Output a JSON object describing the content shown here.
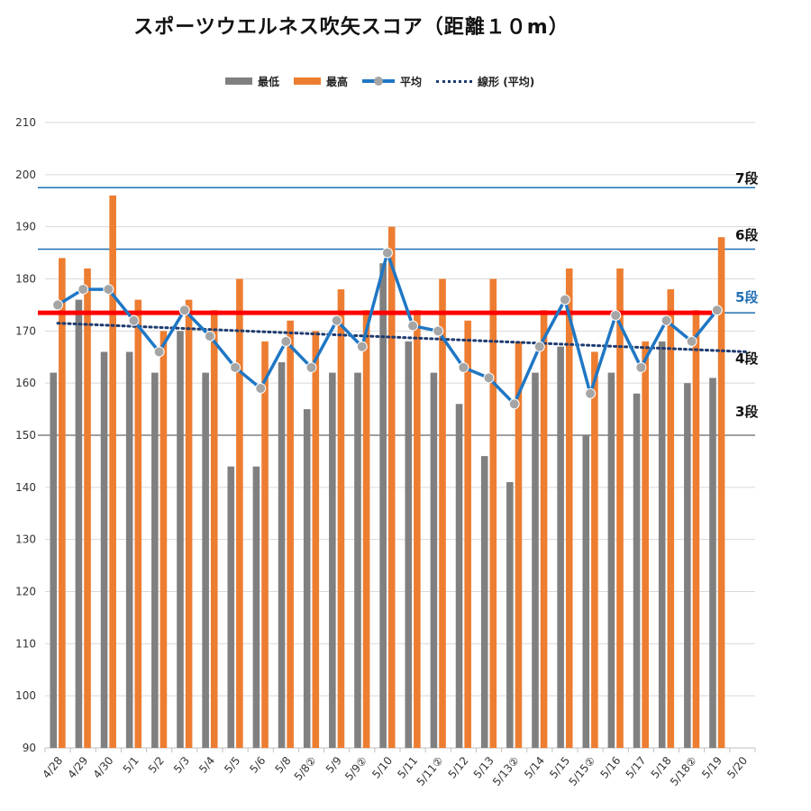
{
  "chart_data": {
    "type": "bar",
    "title": "スポーツウエルネス吹矢スコア（距離１０m）",
    "categories": [
      "4/28",
      "4/29",
      "4/30",
      "5/1",
      "5/2",
      "5/3",
      "5/4",
      "5/5",
      "5/6",
      "5/8",
      "5/8②",
      "5/9",
      "5/9②",
      "5/10",
      "5/11",
      "5/11②",
      "5/12",
      "5/13",
      "5/13②",
      "5/14",
      "5/15",
      "5/15②",
      "5/16",
      "5/17",
      "5/18",
      "5/18②",
      "5/19",
      "5/20"
    ],
    "series": [
      {
        "name": "最低",
        "kind": "bar",
        "color": "#808080",
        "values": [
          162,
          176,
          166,
          166,
          162,
          170,
          162,
          144,
          144,
          164,
          155,
          162,
          162,
          183,
          168,
          162,
          156,
          146,
          141,
          162,
          167,
          150,
          162,
          158,
          168,
          160,
          161,
          null
        ]
      },
      {
        "name": "最高",
        "kind": "bar",
        "color": "#ed7d31",
        "values": [
          184,
          182,
          196,
          176,
          170,
          176,
          174,
          180,
          168,
          172,
          170,
          178,
          174,
          190,
          174,
          180,
          172,
          180,
          168,
          174,
          182,
          166,
          182,
          168,
          178,
          174,
          188,
          null
        ]
      },
      {
        "name": "平均",
        "kind": "line",
        "color": "#1f77c4",
        "marker_color": "#a5a5a5",
        "values": [
          175,
          178,
          178,
          172,
          166,
          174,
          169,
          163,
          159,
          168,
          163,
          172,
          167,
          185,
          171,
          170,
          163,
          161,
          156,
          167,
          176,
          158,
          173,
          163,
          172,
          168,
          174,
          null
        ]
      },
      {
        "name": "線形 (平均)",
        "kind": "trendline",
        "color": "#1f3b70",
        "start": 171.5,
        "end": 166.0
      }
    ],
    "ylim": [
      90,
      210
    ],
    "yticks": [
      90,
      100,
      110,
      120,
      130,
      140,
      150,
      160,
      170,
      180,
      190,
      200,
      210
    ],
    "grid": true,
    "legend_position": "top",
    "reference_lines": [
      {
        "label": "7段",
        "value": 197.5,
        "color": "#1f6fb5",
        "label_color": "#111111",
        "width": 1.5
      },
      {
        "label": "6段",
        "value": 185.7,
        "color": "#1f6fb5",
        "label_color": "#111111",
        "width": 1.5
      },
      {
        "label": "5段",
        "value": 173.5,
        "color": "#1f6fb5",
        "label_color": "#1f6fb5",
        "width": 1.5
      },
      {
        "label": "4段",
        "value": 173.5,
        "color": "#ff0000",
        "label_color": "#111111",
        "width": 5
      },
      {
        "label": "3段",
        "value": 150,
        "color": "#808080",
        "label_color": "#111111",
        "width": 1.5
      }
    ]
  }
}
